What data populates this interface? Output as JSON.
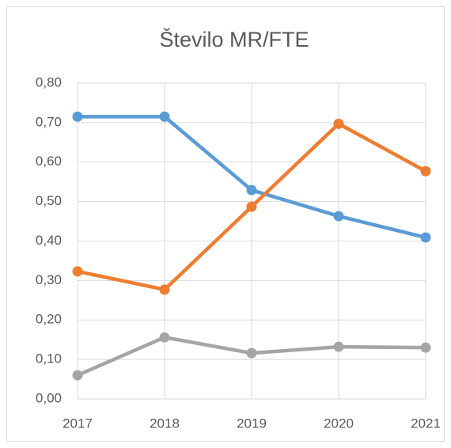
{
  "chart_data": {
    "type": "line",
    "title": "Število MR/FTE",
    "categories": [
      "2017",
      "2018",
      "2019",
      "2020",
      "2021"
    ],
    "series": [
      {
        "color": "#5b9bd5",
        "values": [
          0.715,
          0.715,
          0.529,
          0.463,
          0.409
        ]
      },
      {
        "color": "#ed7d31",
        "values": [
          0.323,
          0.277,
          0.487,
          0.697,
          0.577
        ]
      },
      {
        "color": "#a5a5a5",
        "values": [
          0.06,
          0.156,
          0.116,
          0.132,
          0.13
        ]
      }
    ],
    "ylim": [
      0,
      0.8
    ],
    "yticks": [
      {
        "value": 0,
        "label": "0,00"
      },
      {
        "value": 0.1,
        "label": "0,10"
      },
      {
        "value": 0.2,
        "label": "0,20"
      },
      {
        "value": 0.3,
        "label": "0,30"
      },
      {
        "value": 0.4,
        "label": "0,40"
      },
      {
        "value": 0.5,
        "label": "0,50"
      },
      {
        "value": 0.6,
        "label": "0,60"
      },
      {
        "value": 0.7,
        "label": "0,70"
      },
      {
        "value": 0.8,
        "label": "0,80"
      }
    ],
    "grid": true
  }
}
